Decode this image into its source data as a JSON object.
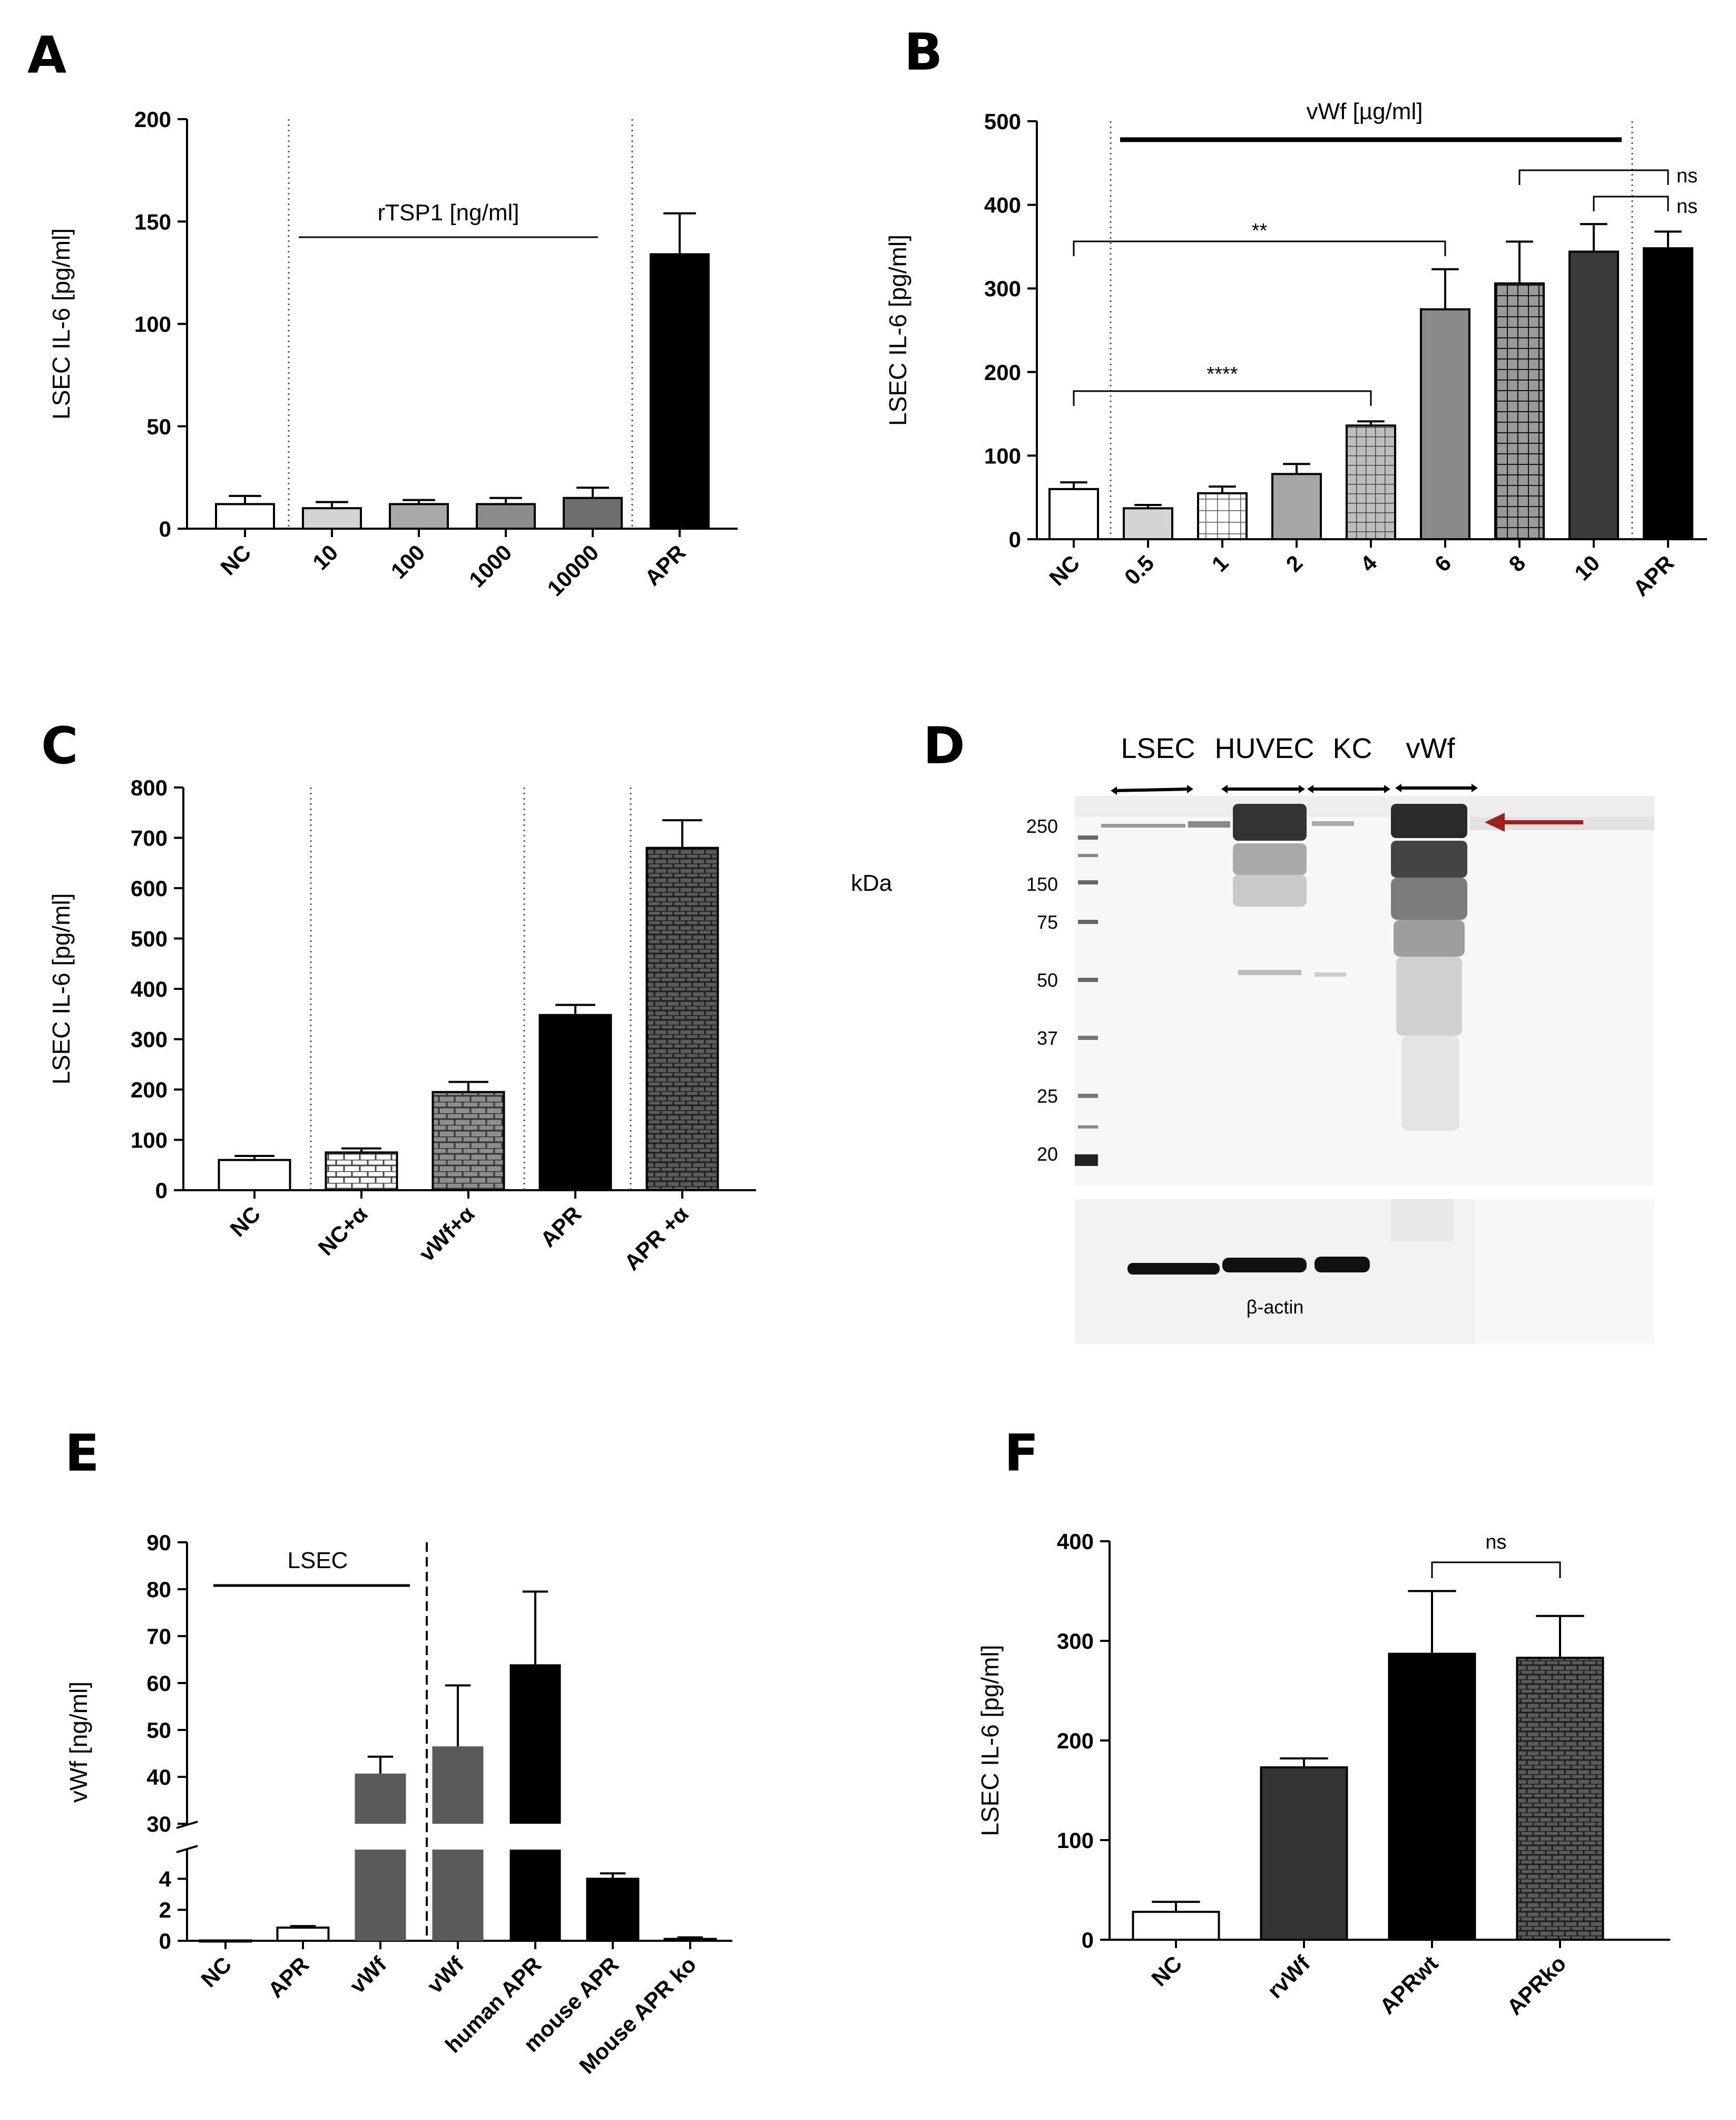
{
  "panels": {
    "A": {
      "label": "A"
    },
    "B": {
      "label": "B"
    },
    "C": {
      "label": "C"
    },
    "D": {
      "label": "D"
    },
    "E": {
      "label": "E"
    },
    "F": {
      "label": "F"
    }
  },
  "chart_data": [
    {
      "id": "A",
      "type": "bar",
      "ylabel": "LSEC IL-6 [pg/ml]",
      "ylim": [
        0,
        200
      ],
      "yticks": [
        0,
        50,
        100,
        150,
        200
      ],
      "categories": [
        "NC",
        "10",
        "100",
        "1000",
        "10000",
        "APR"
      ],
      "values": [
        12,
        10,
        12,
        12,
        15,
        134
      ],
      "errors": [
        4,
        3,
        2,
        3,
        5,
        20
      ],
      "fills": [
        "white",
        "#d4d4d4",
        "#a8a8a8",
        "#8c8c8c",
        "#6e6e6e",
        "#000000"
      ],
      "annotations": [
        {
          "text": "rTSP1 [ng/ml]",
          "type": "bar-label"
        }
      ]
    },
    {
      "id": "B",
      "type": "bar",
      "ylabel": "LSEC IL-6 [pg/ml]",
      "ylim": [
        0,
        500
      ],
      "yticks": [
        0,
        100,
        200,
        300,
        400,
        500
      ],
      "categories": [
        "NC",
        "0.5",
        "1",
        "2",
        "4",
        "6",
        "8",
        "10",
        "APR"
      ],
      "values": [
        60,
        37,
        55,
        78,
        136,
        275,
        306,
        344,
        348
      ],
      "errors": [
        8,
        4,
        8,
        12,
        5,
        48,
        50,
        33,
        20
      ],
      "fills": [
        "white",
        "#d4d4d4",
        "grid-light",
        "#a6a6a6",
        "grid-mid",
        "#8a8a8a",
        "grid-dark",
        "#3a3a3a",
        "#000000"
      ],
      "annotations": [
        {
          "text": "vWf [µg/ml]",
          "type": "bar-label"
        }
      ],
      "significance": [
        {
          "from": "NC",
          "to": "6",
          "label": "**"
        },
        {
          "from": "NC",
          "to": "4",
          "label": "****"
        },
        {
          "from": "8",
          "to": "APR",
          "label": "ns"
        },
        {
          "from": "10",
          "to": "APR",
          "label": "ns"
        }
      ]
    },
    {
      "id": "C",
      "type": "bar",
      "ylabel": "LSEC IL-6 [pg/ml]",
      "ylim": [
        0,
        800
      ],
      "yticks": [
        0,
        100,
        200,
        300,
        400,
        500,
        600,
        700,
        800
      ],
      "categories": [
        "NC",
        "NC+α",
        "vWf+α",
        "APR",
        "APR +α"
      ],
      "values": [
        60,
        75,
        195,
        348,
        680
      ],
      "errors": [
        8,
        8,
        20,
        20,
        55
      ],
      "fills": [
        "white",
        "brick-light",
        "brick-mid",
        "#000000",
        "brick-dark"
      ]
    },
    {
      "id": "E",
      "type": "bar",
      "ylabel": "vWf [ng/ml]",
      "broken_axis": {
        "lower": [
          0,
          5
        ],
        "upper": [
          30,
          90
        ]
      },
      "yticks_lower": [
        0,
        2,
        4
      ],
      "yticks_upper": [
        30,
        40,
        50,
        60,
        70,
        80,
        90
      ],
      "categories": [
        "NC",
        "APR",
        "vWf",
        "vWf",
        "human APR",
        "mouse APR",
        "Mouse APR ko"
      ],
      "values": [
        0.02,
        0.85,
        40.7,
        46.5,
        64.0,
        4.0,
        0.12
      ],
      "errors": [
        0,
        0.1,
        3.6,
        13,
        15.5,
        0.35,
        0.1
      ],
      "fills": [
        "white",
        "white",
        "#5a5a5a",
        "#5a5a5a",
        "#000000",
        "#000000",
        "#000000"
      ],
      "annotations": [
        {
          "text": "LSEC",
          "type": "bar-label"
        }
      ]
    },
    {
      "id": "F",
      "type": "bar",
      "ylabel": "LSEC IL-6 [pg/ml]",
      "ylim": [
        0,
        400
      ],
      "yticks": [
        0,
        100,
        200,
        300,
        400
      ],
      "categories": [
        "NC",
        "rvWf",
        "APRwt",
        "APRko"
      ],
      "values": [
        28,
        173,
        287,
        283
      ],
      "errors": [
        10,
        9,
        63,
        42
      ],
      "fills": [
        "white",
        "#333333",
        "#000000",
        "brick-dark"
      ],
      "significance": [
        {
          "from": "APRwt",
          "to": "APRko",
          "label": "ns"
        }
      ]
    }
  ],
  "western": {
    "lanes": [
      "LSEC",
      "HUVEC",
      "KC",
      "vWf"
    ],
    "markers": [
      "250",
      "150",
      "75",
      "50",
      "37",
      "25",
      "20"
    ],
    "unit": "kDa",
    "loading_label": "β-actin"
  }
}
